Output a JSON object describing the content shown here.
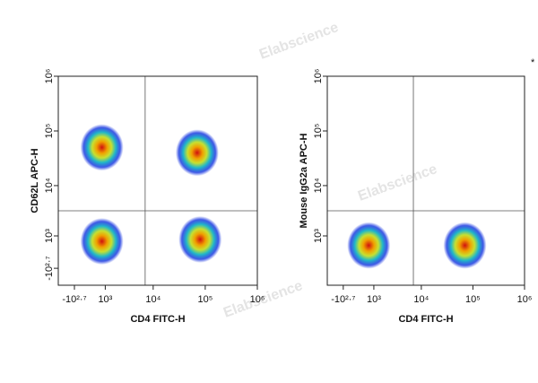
{
  "watermark": "Elabscience",
  "asterisk": "*",
  "chart_data": [
    {
      "type": "scatter",
      "xlabel": "CD4 FITC-H",
      "ylabel": "CD62L APC-H",
      "xlim": [
        -1500,
        1000000
      ],
      "ylim": [
        -1500,
        1000000
      ],
      "xticks": [
        {
          "value": -501,
          "label": "-10²·⁷"
        },
        {
          "value": 1000,
          "label": "10³"
        },
        {
          "value": 10000,
          "label": "10⁴"
        },
        {
          "value": 100000,
          "label": "10⁵"
        },
        {
          "value": 1000000,
          "label": "10⁶"
        }
      ],
      "yticks": [
        {
          "value": -501,
          "label": "-10²·⁷"
        },
        {
          "value": 1000,
          "label": "10³"
        },
        {
          "value": 10000,
          "label": "10⁴"
        },
        {
          "value": 100000,
          "label": "10⁵"
        },
        {
          "value": 1000000,
          "label": "10⁶"
        }
      ],
      "gate_x": 7000,
      "gate_y": 3400,
      "x": [
        800,
        800,
        70000,
        80000
      ],
      "y": [
        50000,
        700,
        40000,
        800
      ]
    },
    {
      "type": "scatter",
      "xlabel": "CD4 FITC-H",
      "ylabel": "Mouse IgG2a APC-H",
      "xlim": [
        -1500,
        1000000
      ],
      "ylim": [
        -1500,
        1000000
      ],
      "xticks": [
        {
          "value": -501,
          "label": "-10²·⁷"
        },
        {
          "value": 1000,
          "label": "10³"
        },
        {
          "value": 10000,
          "label": "10⁴"
        },
        {
          "value": 100000,
          "label": "10⁵"
        },
        {
          "value": 1000000,
          "label": "10⁶"
        }
      ],
      "yticks": [
        {
          "value": 1000,
          "label": "10³"
        },
        {
          "value": 10000,
          "label": "10⁴"
        },
        {
          "value": 100000,
          "label": "10⁵"
        },
        {
          "value": 1000000,
          "label": "10⁶"
        }
      ],
      "gate_x": 7000,
      "gate_y": 3400,
      "x": [
        700,
        70000
      ],
      "y": [
        500,
        500
      ]
    }
  ]
}
